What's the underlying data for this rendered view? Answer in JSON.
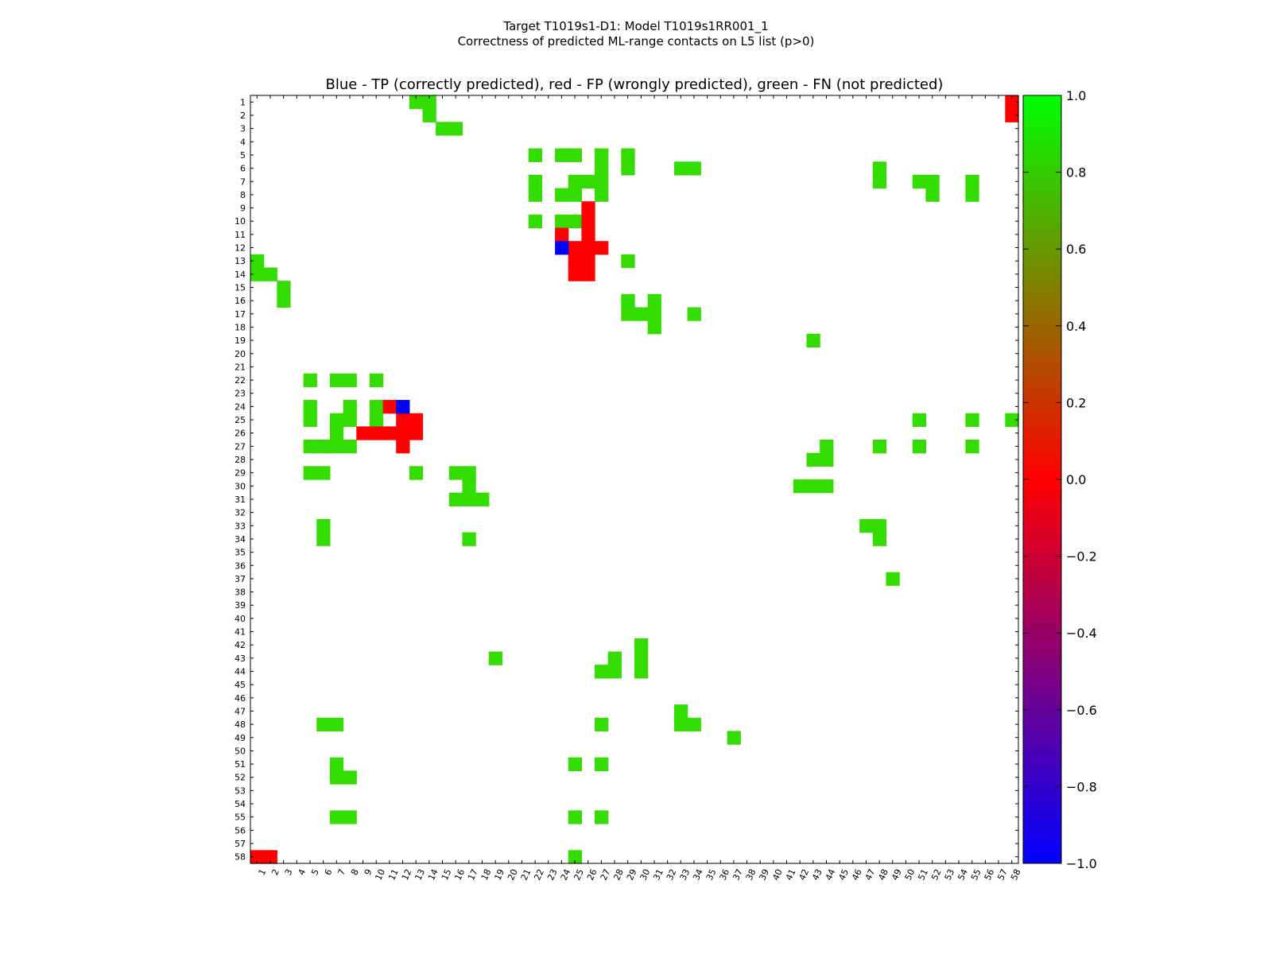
{
  "figure": {
    "suptitle_line1": "Target T1019s1-D1: Model T1019s1RR001_1",
    "suptitle_line2": "Correctness of predicted ML-range contacts on L5 list (p>0)"
  },
  "chart_data": {
    "type": "heatmap",
    "title": "Blue - TP (correctly predicted), red - FP (wrongly predicted), green - FN (not predicted)",
    "xlabel": "",
    "ylabel": "",
    "n": 58,
    "x_tick_labels": [
      "1",
      "2",
      "3",
      "4",
      "5",
      "6",
      "7",
      "8",
      "9",
      "10",
      "11",
      "12",
      "13",
      "14",
      "15",
      "16",
      "17",
      "18",
      "19",
      "20",
      "21",
      "22",
      "23",
      "24",
      "25",
      "26",
      "27",
      "28",
      "29",
      "30",
      "31",
      "32",
      "33",
      "34",
      "35",
      "36",
      "37",
      "38",
      "39",
      "40",
      "41",
      "42",
      "43",
      "44",
      "45",
      "46",
      "47",
      "48",
      "49",
      "50",
      "51",
      "52",
      "53",
      "54",
      "55",
      "56",
      "57",
      "58"
    ],
    "y_tick_labels": [
      "1",
      "2",
      "3",
      "4",
      "5",
      "6",
      "7",
      "8",
      "9",
      "10",
      "11",
      "12",
      "13",
      "14",
      "15",
      "16",
      "17",
      "18",
      "19",
      "20",
      "21",
      "22",
      "23",
      "24",
      "25",
      "26",
      "27",
      "28",
      "29",
      "30",
      "31",
      "32",
      "33",
      "34",
      "35",
      "36",
      "37",
      "38",
      "39",
      "40",
      "41",
      "42",
      "43",
      "44",
      "45",
      "46",
      "47",
      "48",
      "49",
      "50",
      "51",
      "52",
      "53",
      "54",
      "55",
      "56",
      "57",
      "58"
    ],
    "value_legend": {
      "TP": -1.0,
      "FP": 0.0,
      "FN": 0.8
    },
    "colors": {
      "TP": "#0000ff",
      "FP": "#ff0000",
      "FN": "#33dd00"
    },
    "colorbar": {
      "min": -1.0,
      "max": 1.0,
      "ticks": [
        "1.0",
        "0.8",
        "0.6",
        "0.4",
        "0.2",
        "0.0",
        "−0.2",
        "−0.4",
        "−0.6",
        "−0.8",
        "−1.0"
      ],
      "tick_values": [
        1.0,
        0.8,
        0.6,
        0.4,
        0.2,
        0.0,
        -0.2,
        -0.4,
        -0.6,
        -0.8,
        -1.0
      ],
      "stops": [
        {
          "value": -1.0,
          "color": "#0000ff"
        },
        {
          "value": 0.0,
          "color": "#ff0000"
        },
        {
          "value": 1.0,
          "color": "#00ff00"
        }
      ]
    },
    "cells": {
      "TP": [
        [
          12,
          24
        ],
        [
          24,
          12
        ]
      ],
      "FP": [
        [
          1,
          58
        ],
        [
          2,
          58
        ],
        [
          58,
          1
        ],
        [
          58,
          2
        ],
        [
          9,
          26
        ],
        [
          10,
          26
        ],
        [
          11,
          24
        ],
        [
          11,
          26
        ],
        [
          12,
          25
        ],
        [
          12,
          26
        ],
        [
          12,
          27
        ],
        [
          13,
          25
        ],
        [
          13,
          26
        ],
        [
          14,
          25
        ],
        [
          14,
          26
        ],
        [
          24,
          11
        ],
        [
          25,
          12
        ],
        [
          25,
          13
        ],
        [
          26,
          9
        ],
        [
          26,
          10
        ],
        [
          26,
          11
        ],
        [
          26,
          12
        ],
        [
          26,
          13
        ],
        [
          27,
          12
        ]
      ],
      "FN": [
        [
          1,
          13
        ],
        [
          1,
          14
        ],
        [
          2,
          14
        ],
        [
          3,
          15
        ],
        [
          3,
          16
        ],
        [
          5,
          22
        ],
        [
          5,
          24
        ],
        [
          5,
          25
        ],
        [
          5,
          27
        ],
        [
          5,
          29
        ],
        [
          6,
          27
        ],
        [
          6,
          29
        ],
        [
          6,
          33
        ],
        [
          6,
          34
        ],
        [
          6,
          48
        ],
        [
          7,
          22
        ],
        [
          7,
          25
        ],
        [
          7,
          26
        ],
        [
          7,
          27
        ],
        [
          7,
          48
        ],
        [
          7,
          51
        ],
        [
          7,
          52
        ],
        [
          7,
          55
        ],
        [
          8,
          22
        ],
        [
          8,
          24
        ],
        [
          8,
          25
        ],
        [
          8,
          27
        ],
        [
          8,
          52
        ],
        [
          8,
          55
        ],
        [
          10,
          22
        ],
        [
          10,
          24
        ],
        [
          10,
          25
        ],
        [
          13,
          1
        ],
        [
          13,
          29
        ],
        [
          14,
          1
        ],
        [
          14,
          2
        ],
        [
          15,
          3
        ],
        [
          16,
          3
        ],
        [
          16,
          29
        ],
        [
          16,
          31
        ],
        [
          17,
          29
        ],
        [
          17,
          30
        ],
        [
          17,
          31
        ],
        [
          17,
          34
        ],
        [
          18,
          31
        ],
        [
          19,
          43
        ],
        [
          22,
          5
        ],
        [
          22,
          7
        ],
        [
          22,
          8
        ],
        [
          22,
          10
        ],
        [
          24,
          5
        ],
        [
          24,
          8
        ],
        [
          24,
          10
        ],
        [
          25,
          5
        ],
        [
          25,
          7
        ],
        [
          25,
          8
        ],
        [
          25,
          10
        ],
        [
          25,
          51
        ],
        [
          25,
          55
        ],
        [
          25,
          58
        ],
        [
          26,
          7
        ],
        [
          27,
          5
        ],
        [
          27,
          6
        ],
        [
          27,
          7
        ],
        [
          27,
          8
        ],
        [
          27,
          44
        ],
        [
          27,
          48
        ],
        [
          27,
          51
        ],
        [
          27,
          55
        ],
        [
          28,
          43
        ],
        [
          28,
          44
        ],
        [
          29,
          5
        ],
        [
          29,
          6
        ],
        [
          29,
          13
        ],
        [
          29,
          16
        ],
        [
          29,
          17
        ],
        [
          30,
          17
        ],
        [
          30,
          42
        ],
        [
          30,
          43
        ],
        [
          30,
          44
        ],
        [
          31,
          16
        ],
        [
          31,
          17
        ],
        [
          31,
          18
        ],
        [
          33,
          6
        ],
        [
          33,
          47
        ],
        [
          33,
          48
        ],
        [
          34,
          6
        ],
        [
          34,
          17
        ],
        [
          34,
          48
        ],
        [
          37,
          49
        ],
        [
          42,
          30
        ],
        [
          43,
          19
        ],
        [
          43,
          28
        ],
        [
          43,
          30
        ],
        [
          44,
          27
        ],
        [
          44,
          28
        ],
        [
          44,
          30
        ],
        [
          47,
          33
        ],
        [
          48,
          6
        ],
        [
          48,
          7
        ],
        [
          48,
          27
        ],
        [
          48,
          33
        ],
        [
          48,
          34
        ],
        [
          49,
          37
        ],
        [
          51,
          7
        ],
        [
          51,
          25
        ],
        [
          51,
          27
        ],
        [
          52,
          7
        ],
        [
          52,
          8
        ],
        [
          55,
          7
        ],
        [
          55,
          8
        ],
        [
          55,
          25
        ],
        [
          55,
          27
        ],
        [
          58,
          25
        ]
      ]
    }
  }
}
